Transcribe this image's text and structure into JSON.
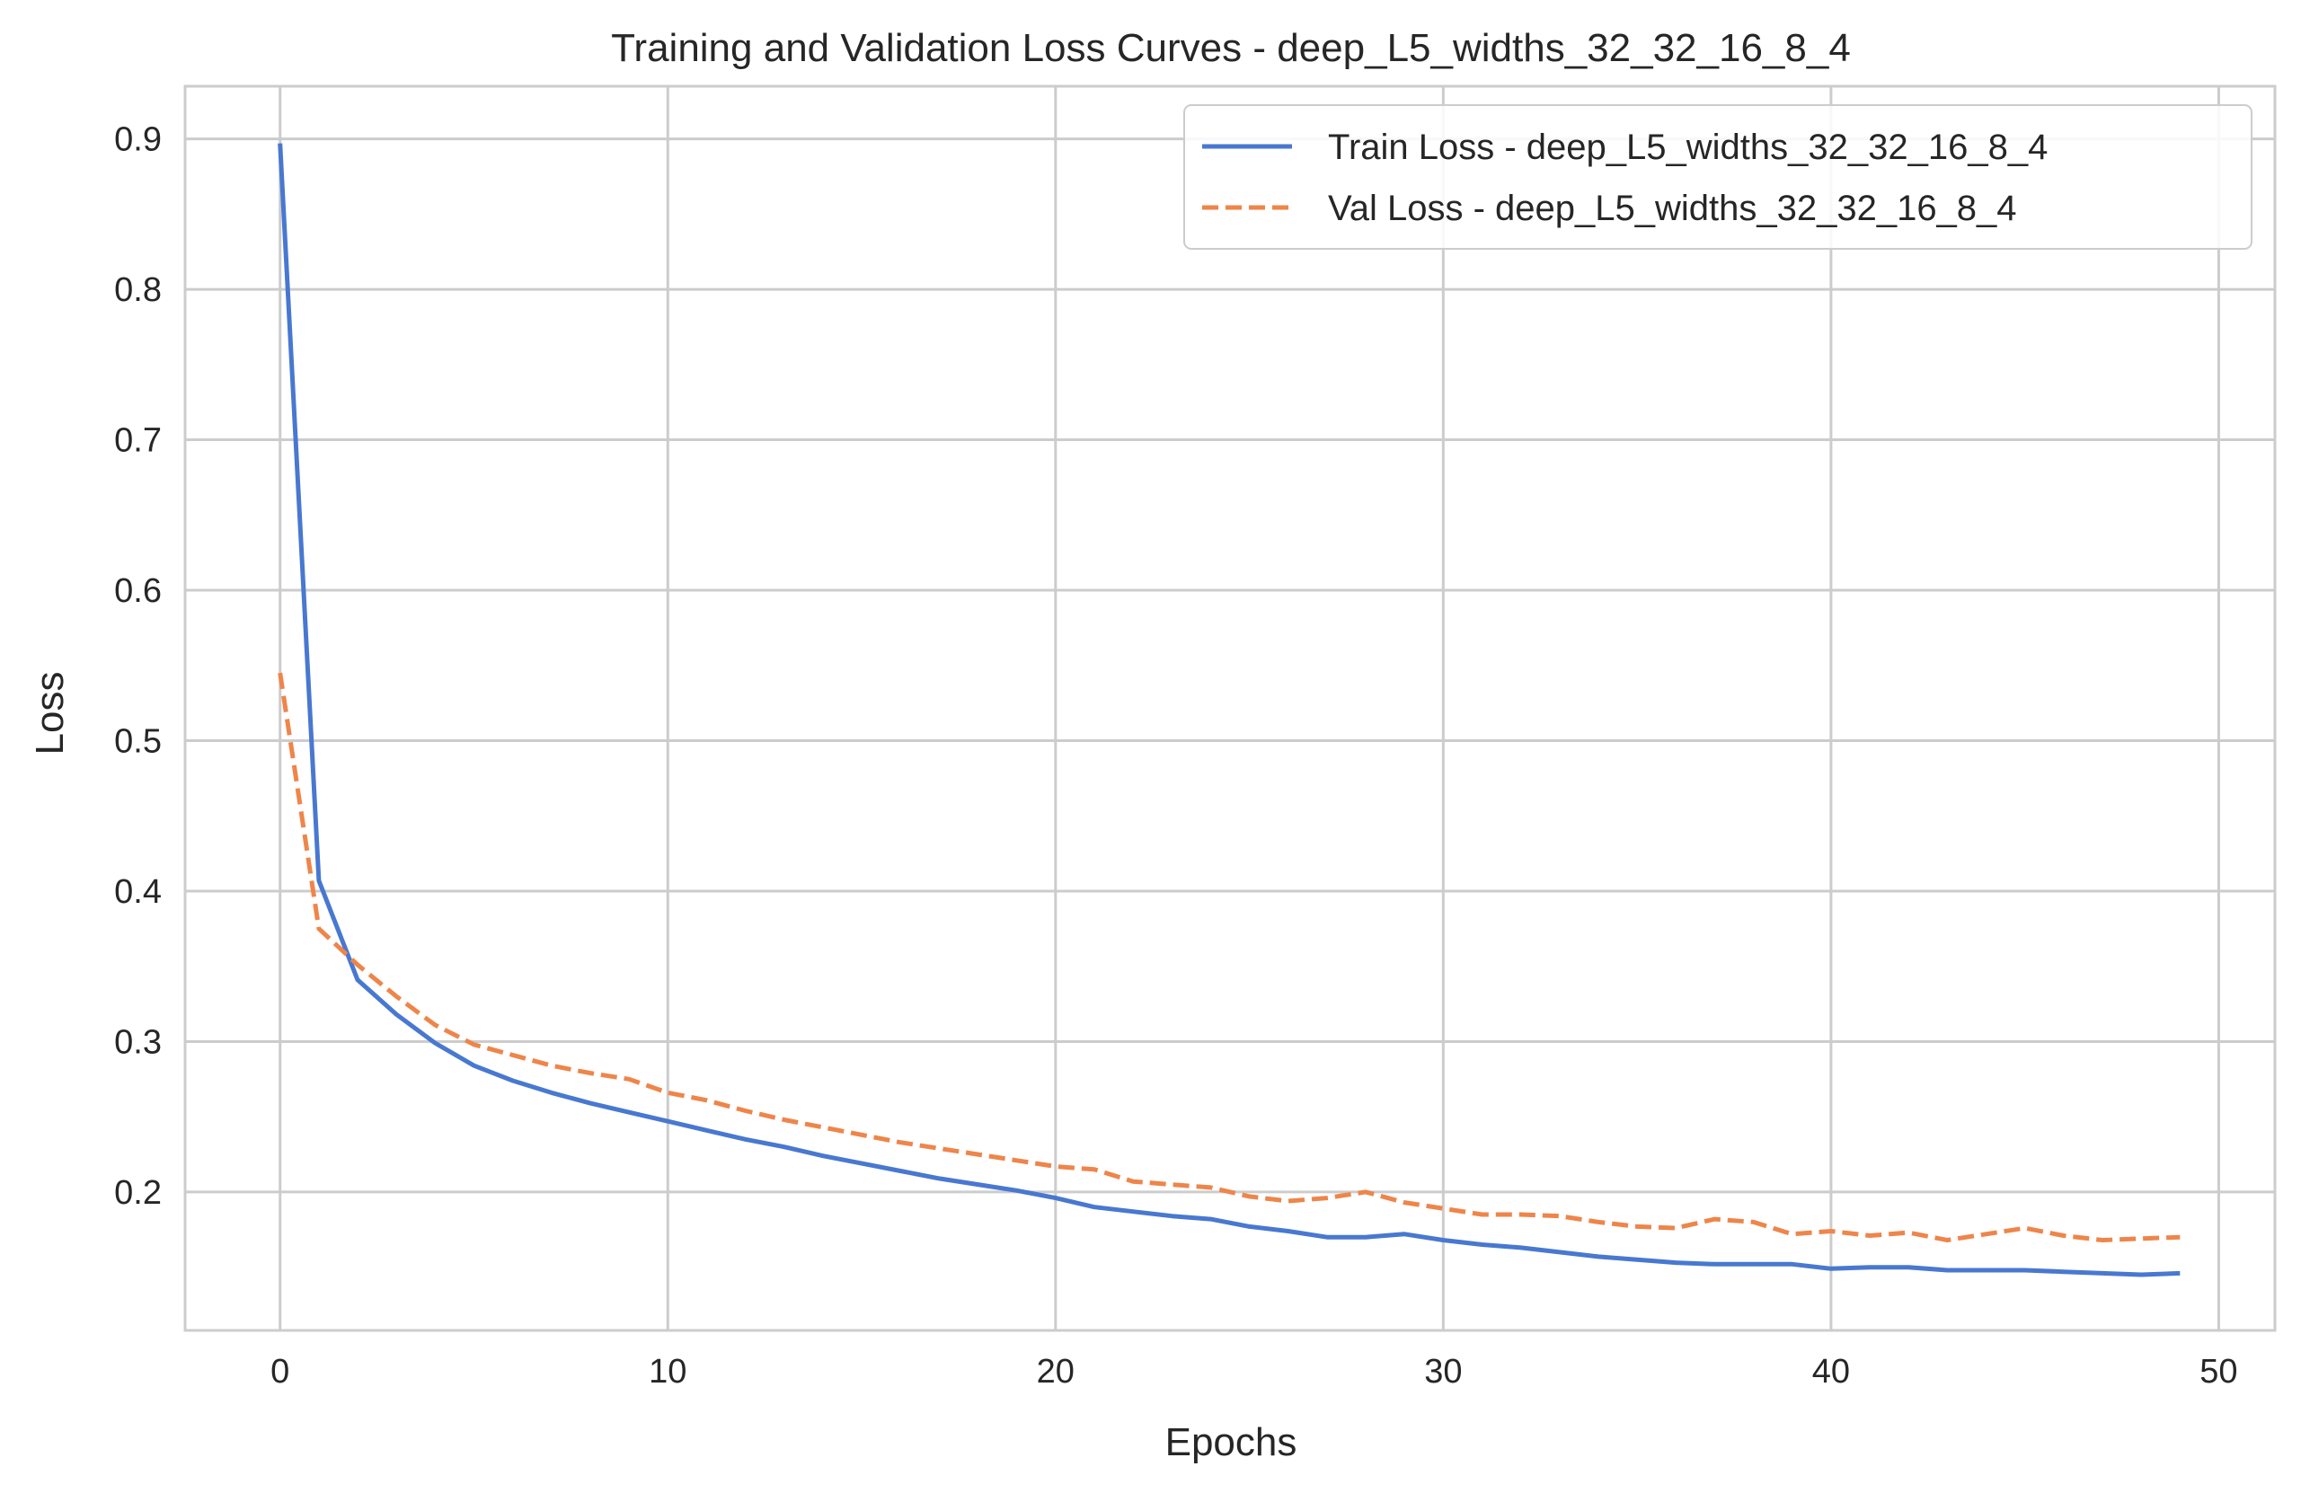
{
  "chart_data": {
    "type": "line",
    "title": "Training and Validation Loss Curves - deep_L5_widths_32_32_16_8_4",
    "xlabel": "Epochs",
    "ylabel": "Loss",
    "xlim": [
      -2.45,
      51.45
    ],
    "ylim": [
      0.108,
      0.935
    ],
    "xticks": [
      0,
      10,
      20,
      30,
      40,
      50
    ],
    "yticks": [
      0.2,
      0.3,
      0.4,
      0.5,
      0.6,
      0.7,
      0.8,
      0.9
    ],
    "xtick_labels": [
      "0",
      "10",
      "20",
      "30",
      "40",
      "50"
    ],
    "ytick_labels": [
      "0.2",
      "0.3",
      "0.4",
      "0.5",
      "0.6",
      "0.7",
      "0.8",
      "0.9"
    ],
    "grid": true,
    "legend_position": "top-right",
    "x": [
      0,
      1,
      2,
      3,
      4,
      5,
      6,
      7,
      8,
      9,
      10,
      11,
      12,
      13,
      14,
      15,
      16,
      17,
      18,
      19,
      20,
      21,
      22,
      23,
      24,
      25,
      26,
      27,
      28,
      29,
      30,
      31,
      32,
      33,
      34,
      35,
      36,
      37,
      38,
      39,
      40,
      41,
      42,
      43,
      44,
      45,
      46,
      47,
      48,
      49
    ],
    "series": [
      {
        "name": "Train Loss - deep_L5_widths_32_32_16_8_4",
        "color": "#4878d0",
        "dash": "solid",
        "values": [
          0.897,
          0.407,
          0.341,
          0.318,
          0.299,
          0.284,
          0.274,
          0.266,
          0.259,
          0.253,
          0.247,
          0.241,
          0.235,
          0.23,
          0.224,
          0.219,
          0.214,
          0.209,
          0.205,
          0.201,
          0.196,
          0.19,
          0.187,
          0.184,
          0.182,
          0.177,
          0.174,
          0.17,
          0.17,
          0.172,
          0.168,
          0.165,
          0.163,
          0.16,
          0.157,
          0.155,
          0.153,
          0.152,
          0.152,
          0.152,
          0.149,
          0.15,
          0.15,
          0.148,
          0.148,
          0.148,
          0.147,
          0.146,
          0.145,
          0.146
        ]
      },
      {
        "name": "Val Loss - deep_L5_widths_32_32_16_8_4",
        "color": "#ee854a",
        "dash": "dashed",
        "values": [
          0.545,
          0.375,
          0.351,
          0.33,
          0.311,
          0.298,
          0.291,
          0.284,
          0.279,
          0.275,
          0.266,
          0.261,
          0.254,
          0.248,
          0.243,
          0.238,
          0.233,
          0.229,
          0.225,
          0.221,
          0.217,
          0.215,
          0.207,
          0.205,
          0.203,
          0.197,
          0.194,
          0.196,
          0.2,
          0.193,
          0.189,
          0.185,
          0.185,
          0.184,
          0.18,
          0.177,
          0.176,
          0.182,
          0.18,
          0.172,
          0.174,
          0.171,
          0.173,
          0.168,
          0.172,
          0.176,
          0.171,
          0.168,
          0.169,
          0.17
        ]
      }
    ]
  }
}
